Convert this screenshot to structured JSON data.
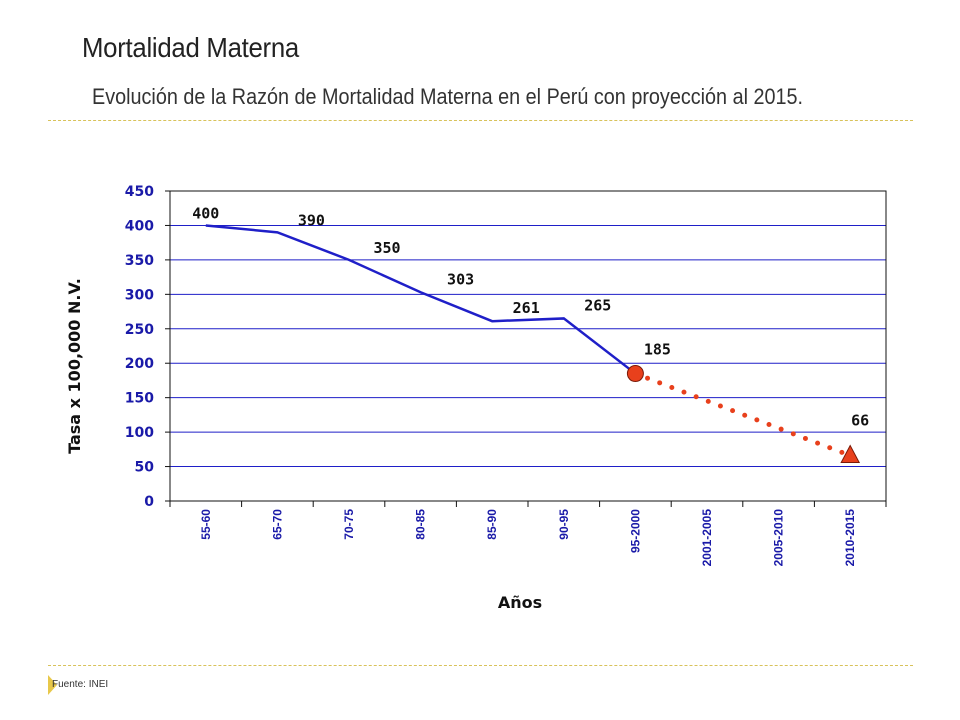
{
  "header": {
    "title": "Mortalidad Materna",
    "subtitle": "Evolución de la Razón de Mortalidad Materna en el Perú con proyección al 2015."
  },
  "footer": {
    "source": "Fuente: INEI"
  },
  "colors": {
    "series_actual": "#1f1fc8",
    "series_projection": "#e8401c",
    "gridline": "#1f1fc8",
    "tick_text": "#1a1aa8",
    "separator": "#d8c25a"
  },
  "chart_data": {
    "type": "line",
    "title": "",
    "xlabel": "Años",
    "ylabel": "Tasa x 100,000 N.V.",
    "categories": [
      "55-60",
      "65-70",
      "70-75",
      "80-85",
      "85-90",
      "90-95",
      "95-2000",
      "2001-2005",
      "2005-2010",
      "2010-2015"
    ],
    "ylim": [
      0,
      450
    ],
    "yticks": [
      0,
      50,
      100,
      150,
      200,
      250,
      300,
      350,
      400,
      450
    ],
    "grid": true,
    "series": [
      {
        "style": "solid",
        "points": [
          {
            "x": "55-60",
            "y": 400
          },
          {
            "x": "65-70",
            "y": 390
          },
          {
            "x": "70-75",
            "y": 350
          },
          {
            "x": "80-85",
            "y": 303
          },
          {
            "x": "85-90",
            "y": 261
          },
          {
            "x": "90-95",
            "y": 265
          },
          {
            "x": "95-2000",
            "y": 185
          }
        ]
      },
      {
        "style": "dotted",
        "points": [
          {
            "x": "95-2000",
            "y": 185,
            "marker": "circle"
          },
          {
            "x": "2010-2015",
            "y": 66,
            "marker": "triangle"
          }
        ]
      }
    ],
    "data_labels": [
      {
        "x": "55-60",
        "y": 400,
        "text": "400"
      },
      {
        "x": "65-70",
        "y": 390,
        "text": "390"
      },
      {
        "x": "70-75",
        "y": 350,
        "text": "350"
      },
      {
        "x": "80-85",
        "y": 303,
        "text": "303"
      },
      {
        "x": "85-90",
        "y": 261,
        "text": "261"
      },
      {
        "x": "90-95",
        "y": 265,
        "text": "265"
      },
      {
        "x": "95-2000",
        "y": 185,
        "text": "185"
      },
      {
        "x": "2010-2015",
        "y": 66,
        "text": "66"
      }
    ]
  }
}
